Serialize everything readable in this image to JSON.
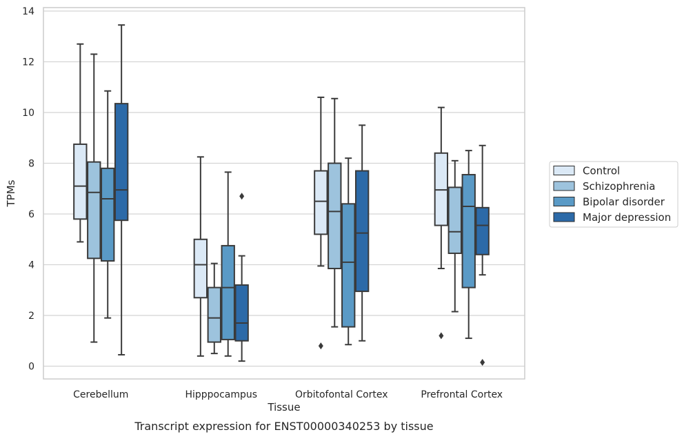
{
  "chart_data": {
    "type": "boxplot",
    "caption": "Transcript expression for ENST00000340253 by tissue",
    "xlabel": "Tissue",
    "ylabel": "TPMs",
    "ylim": [
      -0.5,
      14.1
    ],
    "yticks": [
      "0",
      "2",
      "4",
      "6",
      "8",
      "10",
      "12",
      "14"
    ],
    "grid": "horizontal",
    "legend_position": "right, outside plot",
    "categories": [
      "Cerebellum",
      "Hipppocampus",
      "Orbitofontal Cortex",
      "Prefrontal Cortex"
    ],
    "series": [
      {
        "name": "Control",
        "color": "#dbe9f6",
        "boxes": [
          {
            "whislo": 4.9,
            "q1": 5.8,
            "med": 7.1,
            "q3": 8.75,
            "whishi": 12.7,
            "fliers": []
          },
          {
            "whislo": 0.4,
            "q1": 2.7,
            "med": 4.0,
            "q3": 5.0,
            "whishi": 8.25,
            "fliers": []
          },
          {
            "whislo": 3.95,
            "q1": 5.2,
            "med": 6.5,
            "q3": 7.7,
            "whishi": 10.6,
            "fliers": [
              0.8
            ]
          },
          {
            "whislo": 3.85,
            "q1": 5.55,
            "med": 6.95,
            "q3": 8.4,
            "whishi": 10.2,
            "fliers": [
              1.2
            ]
          }
        ]
      },
      {
        "name": "Schizophrenia",
        "color": "#9dc3dd",
        "boxes": [
          {
            "whislo": 0.95,
            "q1": 4.25,
            "med": 6.85,
            "q3": 8.05,
            "whishi": 12.3,
            "fliers": []
          },
          {
            "whislo": 0.5,
            "q1": 0.95,
            "med": 1.9,
            "q3": 3.1,
            "whishi": 4.05,
            "fliers": []
          },
          {
            "whislo": 1.55,
            "q1": 3.85,
            "med": 6.1,
            "q3": 8.0,
            "whishi": 10.55,
            "fliers": []
          },
          {
            "whislo": 2.15,
            "q1": 4.45,
            "med": 5.3,
            "q3": 7.05,
            "whishi": 8.1,
            "fliers": []
          }
        ]
      },
      {
        "name": "Bipolar disorder",
        "color": "#5a9ac6",
        "boxes": [
          {
            "whislo": 1.9,
            "q1": 4.15,
            "med": 6.6,
            "q3": 7.8,
            "whishi": 10.85,
            "fliers": []
          },
          {
            "whislo": 0.4,
            "q1": 1.05,
            "med": 3.1,
            "q3": 4.75,
            "whishi": 7.65,
            "fliers": []
          },
          {
            "whislo": 0.85,
            "q1": 1.55,
            "med": 4.1,
            "q3": 6.4,
            "whishi": 8.2,
            "fliers": []
          },
          {
            "whislo": 1.1,
            "q1": 3.1,
            "med": 6.3,
            "q3": 7.55,
            "whishi": 8.5,
            "fliers": []
          }
        ]
      },
      {
        "name": "Major depression",
        "color": "#2c6aa8",
        "boxes": [
          {
            "whislo": 0.45,
            "q1": 5.75,
            "med": 6.95,
            "q3": 10.35,
            "whishi": 13.45,
            "fliers": []
          },
          {
            "whislo": 0.2,
            "q1": 1.0,
            "med": 1.7,
            "q3": 3.2,
            "whishi": 4.35,
            "fliers": [
              6.7
            ]
          },
          {
            "whislo": 1.0,
            "q1": 2.95,
            "med": 5.25,
            "q3": 7.7,
            "whishi": 9.5,
            "fliers": []
          },
          {
            "whislo": 3.6,
            "q1": 4.4,
            "med": 5.55,
            "q3": 6.25,
            "whishi": 8.7,
            "fliers": [
              0.15
            ]
          }
        ]
      }
    ]
  }
}
